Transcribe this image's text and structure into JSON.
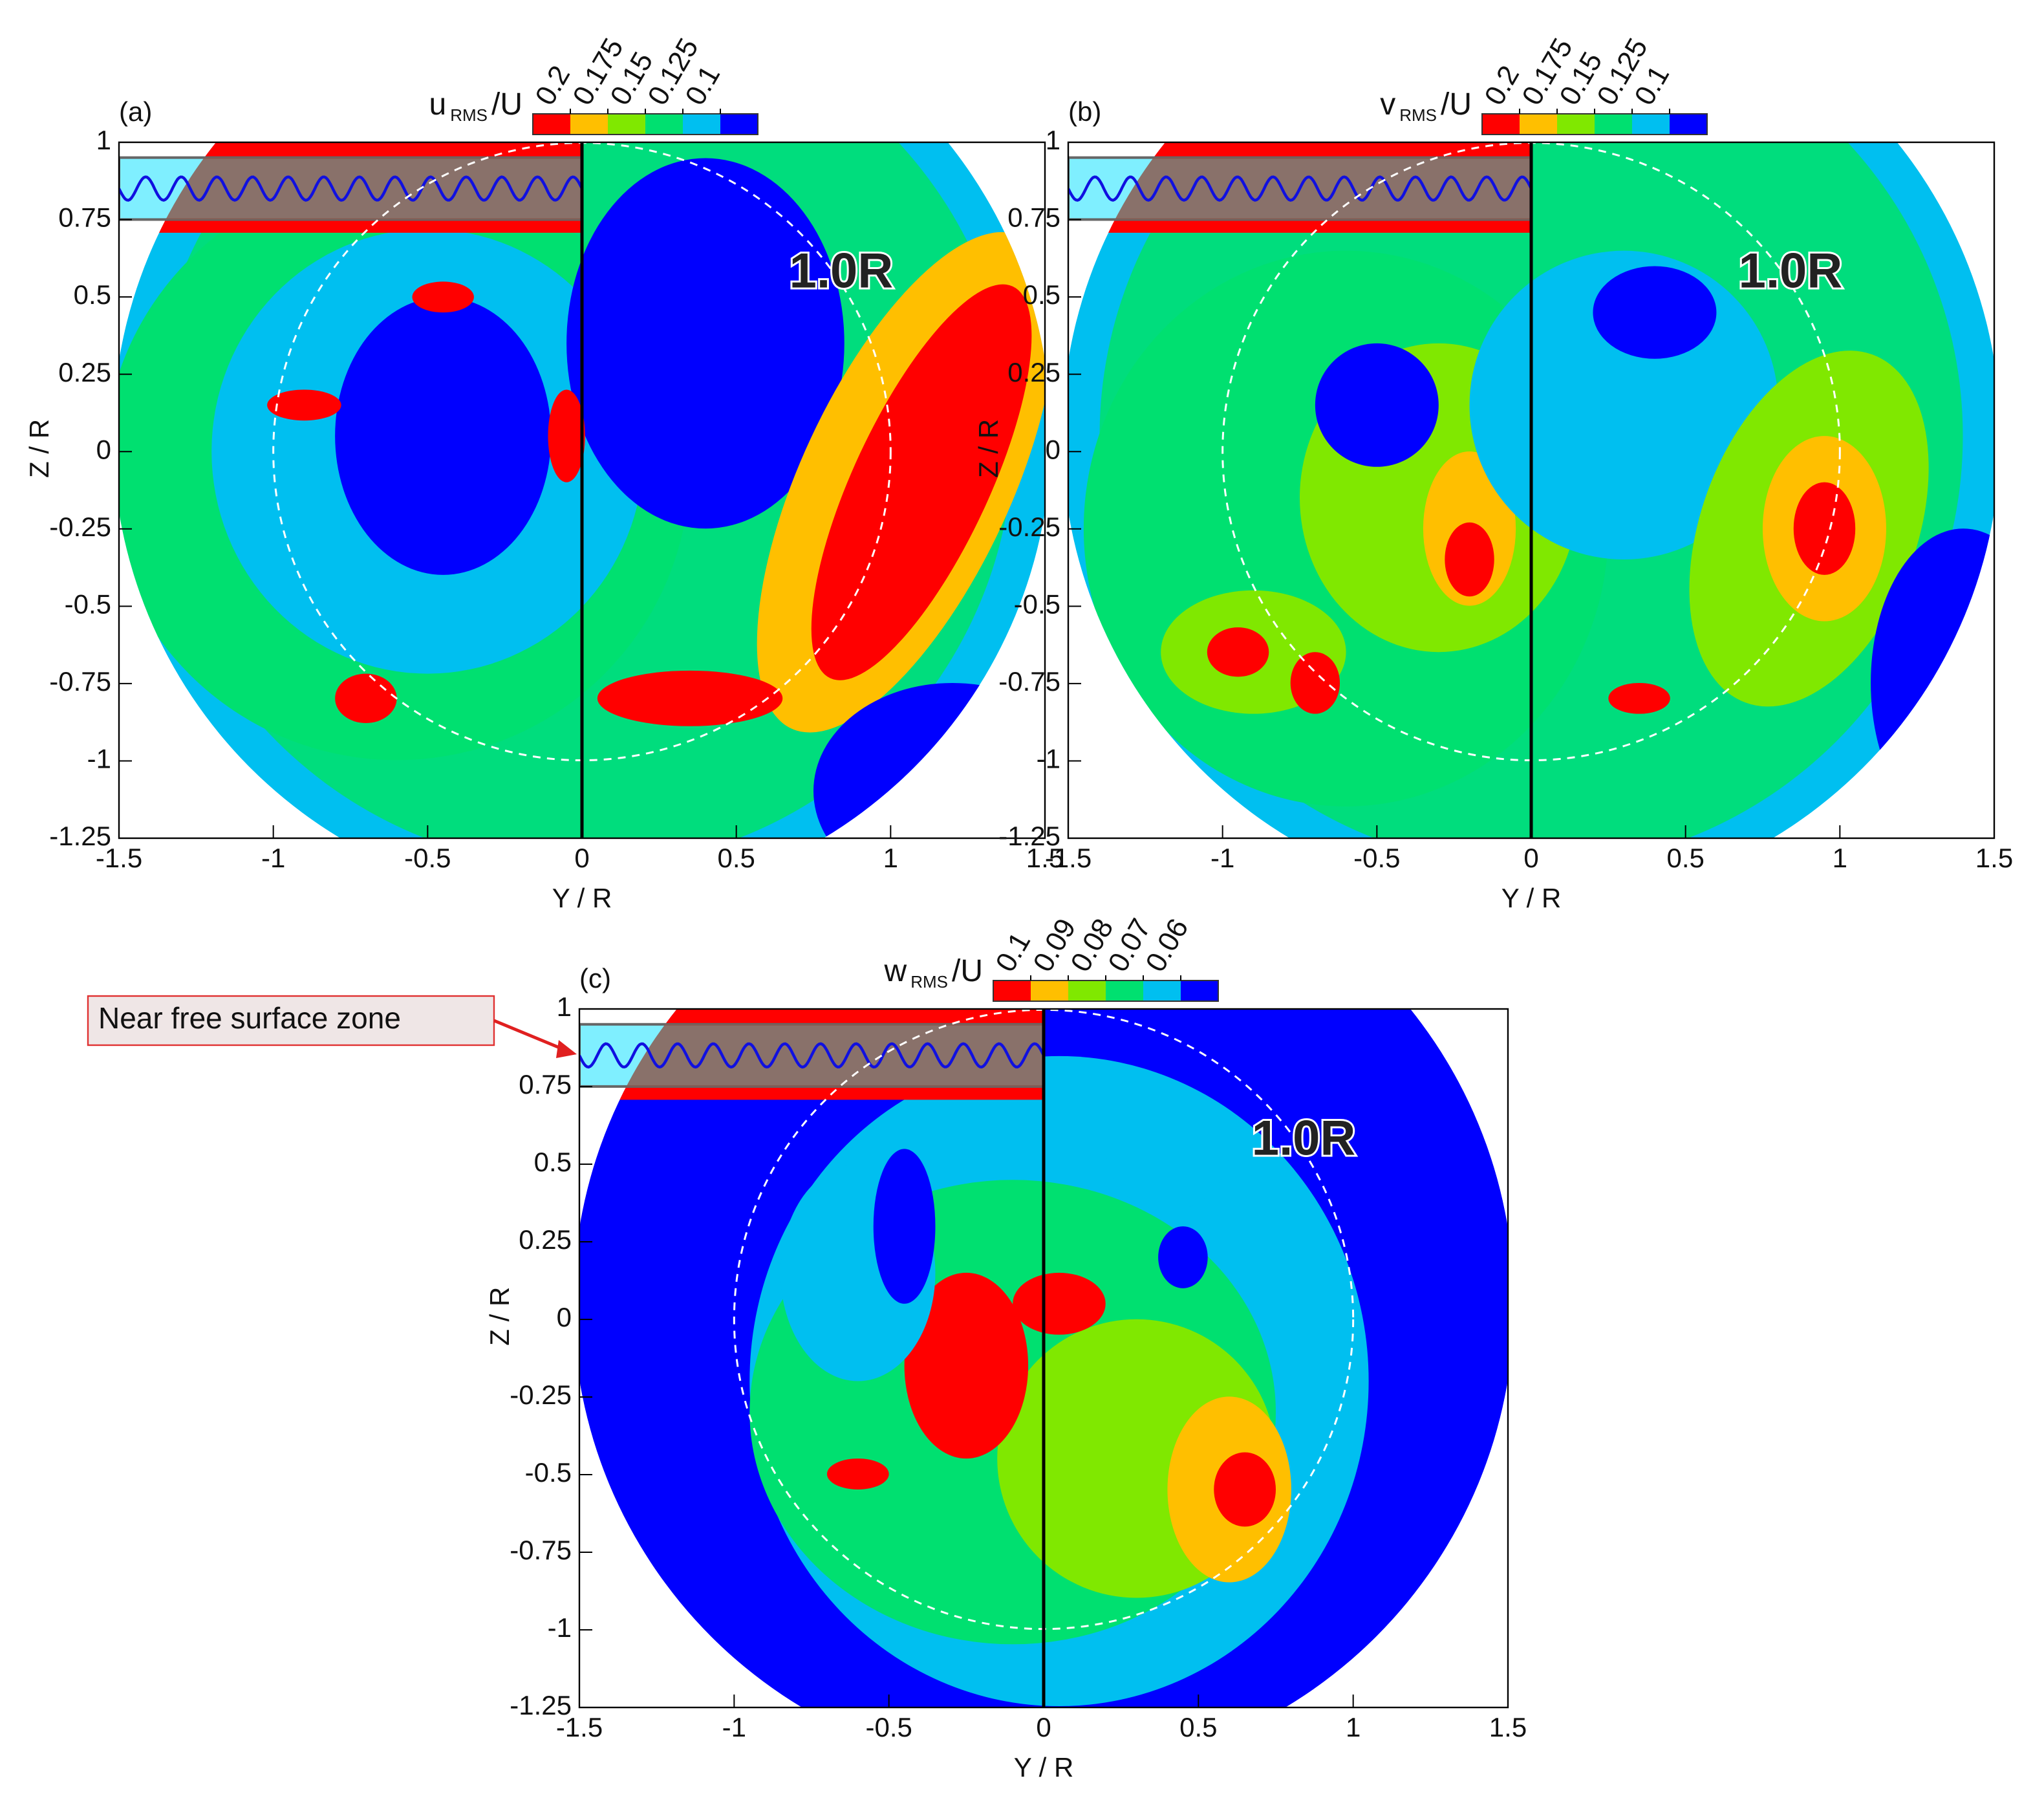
{
  "chart_data": [
    {
      "type": "contour",
      "panel_label": "(a)",
      "colorbar_title": [
        "u",
        "RMS",
        "/U"
      ],
      "levels": [
        0.2,
        0.175,
        0.15,
        0.125,
        0.1
      ],
      "level_colors": [
        "#ff0000",
        "#ffbf00",
        "#80e800",
        "#00e070",
        "#00bff0",
        "#0000ff"
      ],
      "xlabel": "Y / R",
      "ylabel": "Z / R",
      "circle_label": "1.0R",
      "xlim": [
        -1.5,
        1.5
      ],
      "ylim": [
        -1.25,
        1
      ],
      "xticks": [
        -1.5,
        -1,
        -0.5,
        0,
        0.5,
        1,
        1.5
      ],
      "yticks": [
        -1.25,
        -1,
        -0.75,
        -0.5,
        -0.25,
        0,
        0.25,
        0.5,
        0.75,
        1
      ]
    },
    {
      "type": "contour",
      "panel_label": "(b)",
      "colorbar_title": [
        "v",
        "RMS",
        "/U"
      ],
      "levels": [
        0.2,
        0.175,
        0.15,
        0.125,
        0.1
      ],
      "level_colors": [
        "#ff0000",
        "#ffbf00",
        "#80e800",
        "#00e070",
        "#00bff0",
        "#0000ff"
      ],
      "xlabel": "Y / R",
      "ylabel": "Z / R",
      "circle_label": "1.0R",
      "xlim": [
        -1.5,
        1.5
      ],
      "ylim": [
        -1.25,
        1
      ],
      "xticks": [
        -1.5,
        -1,
        -0.5,
        0,
        0.5,
        1,
        1.5
      ],
      "yticks": [
        -1.25,
        -1,
        -0.75,
        -0.5,
        -0.25,
        0,
        0.25,
        0.5,
        0.75,
        1
      ]
    },
    {
      "type": "contour",
      "panel_label": "(c)",
      "colorbar_title": [
        "w",
        "RMS",
        "/U"
      ],
      "levels": [
        0.1,
        0.09,
        0.08,
        0.07,
        0.06
      ],
      "level_colors": [
        "#ff0000",
        "#ffbf00",
        "#80e800",
        "#00e070",
        "#00bff0",
        "#0000ff"
      ],
      "xlabel": "Y / R",
      "ylabel": "Z / R",
      "circle_label": "1.0R",
      "callout": "Near free surface zone",
      "xlim": [
        -1.5,
        1.5
      ],
      "ylim": [
        -1.25,
        1
      ],
      "xticks": [
        -1.5,
        -1,
        -0.5,
        0,
        0.5,
        1,
        1.5
      ],
      "yticks": [
        -1.25,
        -1,
        -0.75,
        -0.5,
        -0.25,
        0,
        0.25,
        0.5,
        0.75,
        1
      ]
    }
  ]
}
